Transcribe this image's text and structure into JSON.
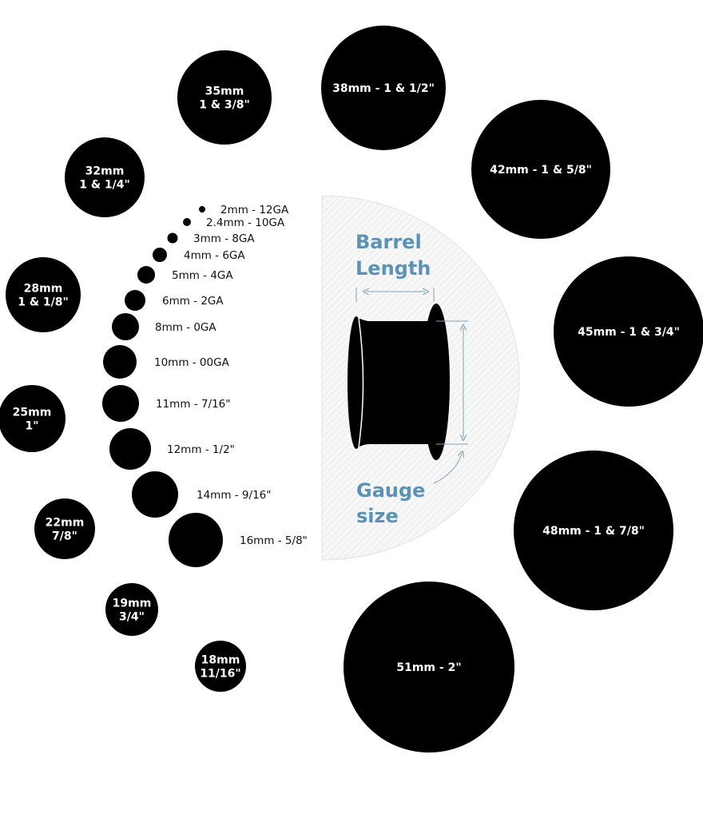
{
  "colors": {
    "circle": "#000000",
    "accent": "#5b93b8",
    "panel": "#f3f3f3",
    "label_small": "#111111"
  },
  "large_sizes": [
    {
      "lines": [
        "35mm",
        "1 & 3/8\""
      ]
    },
    {
      "lines": [
        "38mm - 1 & 1/2\""
      ]
    },
    {
      "lines": [
        "42mm - 1 & 5/8\""
      ]
    },
    {
      "lines": [
        "45mm - 1 & 3/4\""
      ]
    },
    {
      "lines": [
        "48mm - 1 & 7/8\""
      ]
    },
    {
      "lines": [
        "51mm - 2\""
      ]
    },
    {
      "lines": [
        "32mm",
        "1 & 1/4\""
      ]
    },
    {
      "lines": [
        "28mm",
        "1 & 1/8\""
      ]
    },
    {
      "lines": [
        "25mm",
        "1\""
      ]
    },
    {
      "lines": [
        "22mm",
        "7/8\""
      ]
    },
    {
      "lines": [
        "19mm",
        "3/4\""
      ]
    },
    {
      "lines": [
        "18mm",
        "11/16\""
      ]
    }
  ],
  "small_sizes": [
    {
      "label": "2mm - 12GA"
    },
    {
      "label": "2.4mm - 10GA"
    },
    {
      "label": "3mm - 8GA"
    },
    {
      "label": "4mm - 6GA"
    },
    {
      "label": "5mm - 4GA"
    },
    {
      "label": "6mm - 2GA"
    },
    {
      "label": "8mm - 0GA"
    },
    {
      "label": "10mm - 00GA"
    },
    {
      "label": "11mm - 7/16\""
    },
    {
      "label": "12mm - 1/2\""
    },
    {
      "label": "14mm - 9/16\""
    },
    {
      "label": "16mm - 5/8\""
    }
  ],
  "diagram": {
    "barrel_label": [
      "Barrel",
      "Length"
    ],
    "gauge_label": [
      "Gauge",
      "size"
    ]
  }
}
